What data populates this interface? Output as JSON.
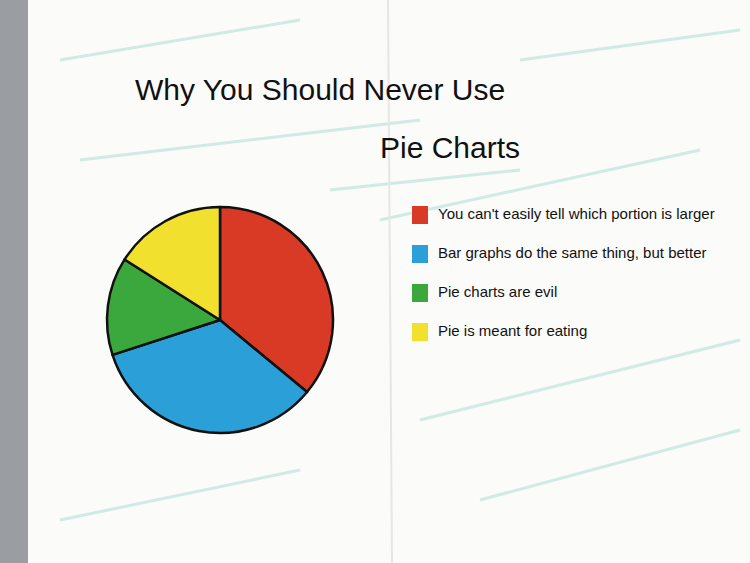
{
  "chart_data": {
    "type": "pie",
    "title": "Why You Should Never Use Pie Charts",
    "categories": [
      "You can't easily tell which portion is larger",
      "Bar graphs do the same thing, but better",
      "Pie charts are evil",
      "Pie is meant for eating"
    ],
    "values": [
      36,
      34,
      14,
      16
    ],
    "colors": [
      "#d93a26",
      "#2b9fd8",
      "#3aa83c",
      "#f1e02e"
    ],
    "legend": "right"
  }
}
